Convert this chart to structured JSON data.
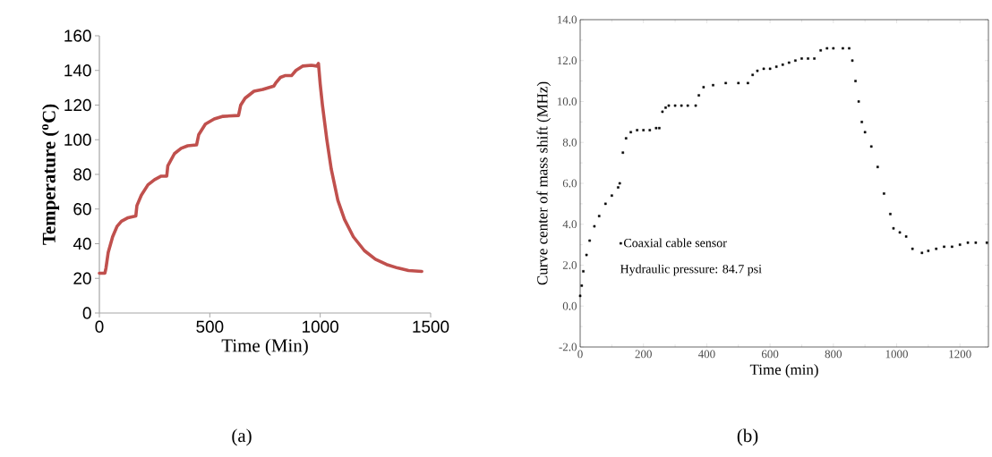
{
  "chart_data": [
    {
      "type": "line",
      "xlabel": "Time (Min)",
      "ylabel": "Temperature ($^{o}$C)",
      "x": [
        0,
        25,
        30,
        40,
        60,
        80,
        100,
        130,
        165,
        170,
        190,
        220,
        250,
        280,
        305,
        310,
        340,
        370,
        400,
        440,
        450,
        480,
        520,
        560,
        630,
        640,
        660,
        700,
        740,
        790,
        800,
        820,
        840,
        870,
        890,
        920,
        960,
        985,
        992,
        1000,
        1010,
        1030,
        1050,
        1080,
        1110,
        1150,
        1200,
        1250,
        1300,
        1350,
        1400,
        1460
      ],
      "series": [
        {
          "color": "#c0504d",
          "values": [
            23,
            23,
            26,
            35,
            44,
            50,
            53,
            55,
            56,
            62,
            68,
            74,
            77,
            79,
            79,
            85,
            92,
            95,
            96.5,
            97,
            103,
            109,
            112,
            113.5,
            114,
            120,
            124,
            128,
            129,
            131,
            133,
            136,
            137,
            137,
            140,
            142.5,
            143,
            142.5,
            144,
            132,
            120,
            100,
            83,
            65,
            54,
            44,
            36,
            31,
            28,
            26,
            24.5,
            24
          ]
        }
      ],
      "xlim": [
        0,
        1500
      ],
      "ylim": [
        0,
        160
      ],
      "xticks": [
        0,
        500,
        1000,
        1500
      ],
      "yticks": [
        0,
        20,
        40,
        60,
        80,
        100,
        120,
        140,
        160
      ],
      "marker": "none",
      "line_style": "solid",
      "annotations": [
        "(a)"
      ]
    },
    {
      "type": "scatter",
      "xlabel": "Time (min)",
      "ylabel": "Curve center of mass shift (MHz)",
      "x": [
        0,
        5,
        10,
        20,
        30,
        45,
        60,
        80,
        100,
        120,
        125,
        135,
        145,
        160,
        180,
        200,
        220,
        240,
        250,
        260,
        270,
        280,
        300,
        320,
        340,
        365,
        375,
        390,
        420,
        460,
        500,
        530,
        545,
        560,
        580,
        600,
        620,
        640,
        660,
        680,
        700,
        720,
        740,
        760,
        780,
        800,
        830,
        850,
        860,
        870,
        880,
        890,
        900,
        920,
        940,
        960,
        980,
        990,
        1010,
        1030,
        1050,
        1080,
        1100,
        1125,
        1150,
        1175,
        1200,
        1225,
        1250,
        1285
      ],
      "series": [
        {
          "name": "Coaxial cable sensor",
          "color": "#000000",
          "values": [
            0.5,
            1.0,
            1.7,
            2.5,
            3.2,
            3.9,
            4.4,
            5.0,
            5.4,
            5.8,
            6.0,
            7.5,
            8.2,
            8.5,
            8.6,
            8.6,
            8.6,
            8.7,
            8.7,
            9.5,
            9.7,
            9.8,
            9.8,
            9.8,
            9.8,
            9.8,
            10.3,
            10.7,
            10.8,
            10.9,
            10.9,
            10.9,
            11.3,
            11.5,
            11.6,
            11.6,
            11.7,
            11.8,
            11.9,
            12.0,
            12.1,
            12.1,
            12.1,
            12.5,
            12.6,
            12.6,
            12.6,
            12.6,
            12.0,
            11.0,
            10.0,
            9.0,
            8.5,
            7.8,
            6.8,
            5.5,
            4.5,
            3.8,
            3.6,
            3.4,
            2.8,
            2.6,
            2.7,
            2.8,
            2.9,
            2.9,
            3.0,
            3.1,
            3.1,
            3.1
          ]
        }
      ],
      "xlim": [
        0,
        1290
      ],
      "ylim": [
        -2,
        14
      ],
      "xticks": [
        0,
        200,
        400,
        600,
        800,
        1000,
        1200
      ],
      "yticks": [
        {
          "value": -2,
          "label": "-2.0"
        },
        {
          "value": 0,
          "label": "0.0"
        },
        {
          "value": 2,
          "label": "2.0"
        },
        {
          "value": 4,
          "label": "4.0"
        },
        {
          "value": 6,
          "label": "6.0"
        },
        {
          "value": 8,
          "label": "8.0"
        },
        {
          "value": 10,
          "label": "10.0"
        },
        {
          "value": 12,
          "label": "12.0"
        },
        {
          "value": 14,
          "label": "14.0"
        }
      ],
      "marker": "square",
      "legend": "bottom left",
      "annotations": [
        "Hydraulic pressure: 84.7 psi",
        "(b)"
      ]
    }
  ]
}
